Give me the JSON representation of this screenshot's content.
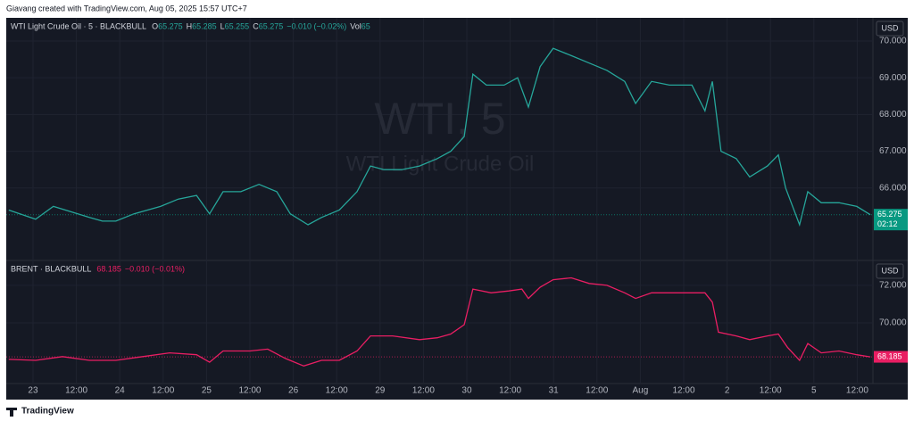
{
  "header": "Giavang created with TradingView.com, Aug 05, 2025 15:57 UTC+7",
  "footer": "TradingView",
  "chart_data": [
    {
      "type": "line",
      "title": "WTI Light Crude Oil · 5 · BLACKBULL",
      "watermark": "WTI, 5",
      "watermark_subtitle": "WTI Light Crude Oil",
      "ohlc": [
        {
          "label": "O",
          "value": 65.275
        },
        {
          "label": "H",
          "value": 65.285
        },
        {
          "label": "L",
          "value": 65.255
        },
        {
          "label": "C",
          "value": 65.275
        }
      ],
      "change": "−0.010 (−0.02%)",
      "volume": {
        "label": "Vol",
        "value": 65
      },
      "currency": "USD",
      "last_price": 65.275,
      "countdown": "02:12",
      "color": "#26a69a",
      "tag_color": "#089981",
      "xlim": [
        -0.617,
        19.362
      ],
      "ylim": [
        64.03,
        70.63
      ],
      "yticks": [
        {
          "value": 66,
          "label": "66.000"
        },
        {
          "value": 67,
          "label": "67.000"
        },
        {
          "value": 68,
          "label": "68.000"
        },
        {
          "value": 69,
          "label": "69.000"
        },
        {
          "value": 70,
          "label": "70.000"
        }
      ],
      "x": [
        -0.56,
        0.06,
        0.47,
        1.3,
        1.6,
        1.91,
        2.33,
        2.94,
        3.35,
        3.77,
        4.07,
        4.38,
        4.79,
        5.21,
        5.62,
        5.93,
        6.34,
        6.65,
        7.06,
        7.47,
        7.78,
        8.09,
        8.5,
        8.91,
        9.32,
        9.63,
        9.94,
        10.14,
        10.45,
        10.86,
        11.17,
        11.42,
        11.69,
        11.99,
        12.41,
        12.82,
        13.23,
        13.64,
        13.89,
        14.26,
        14.67,
        15.19,
        15.49,
        15.66,
        15.86,
        16.21,
        16.52,
        16.93,
        17.18,
        17.35,
        17.67,
        17.86,
        18.17,
        18.58,
        18.99,
        19.3
      ],
      "values": [
        65.4,
        65.15,
        65.5,
        65.2,
        65.1,
        65.1,
        65.3,
        65.5,
        65.7,
        65.8,
        65.3,
        65.9,
        65.9,
        66.1,
        65.9,
        65.3,
        65.0,
        65.2,
        65.4,
        65.9,
        66.6,
        66.5,
        66.5,
        66.6,
        66.8,
        67.0,
        67.4,
        69.1,
        68.8,
        68.8,
        69.0,
        68.2,
        69.3,
        69.8,
        69.6,
        69.4,
        69.2,
        68.9,
        68.3,
        68.9,
        68.8,
        68.8,
        68.1,
        68.9,
        67.0,
        66.8,
        66.3,
        66.6,
        66.9,
        66.0,
        65.0,
        65.9,
        65.6,
        65.6,
        65.5,
        65.275
      ]
    },
    {
      "type": "line",
      "title": "BRENT · BLACKBULL",
      "last_price": 68.185,
      "change": "−0.010 (−0.01%)",
      "currency": "USD",
      "color": "#e91e63",
      "tag_color": "#e91e63",
      "xlim": [
        -0.617,
        19.362
      ],
      "ylim": [
        66.76,
        73.33
      ],
      "yticks": [
        {
          "value": 70,
          "label": "70.000"
        },
        {
          "value": 72,
          "label": "72.000"
        }
      ],
      "xticks": [
        {
          "value": 0,
          "label": "23"
        },
        {
          "value": 1,
          "label": "12:00"
        },
        {
          "value": 2,
          "label": "24"
        },
        {
          "value": 3,
          "label": "12:00"
        },
        {
          "value": 4,
          "label": "25"
        },
        {
          "value": 5,
          "label": "12:00"
        },
        {
          "value": 6,
          "label": "26"
        },
        {
          "value": 7,
          "label": "12:00"
        },
        {
          "value": 8,
          "label": "29"
        },
        {
          "value": 9,
          "label": "12:00"
        },
        {
          "value": 10,
          "label": "30"
        },
        {
          "value": 11,
          "label": "12:00"
        },
        {
          "value": 12,
          "label": "31"
        },
        {
          "value": 13,
          "label": "12:00"
        },
        {
          "value": 14,
          "label": "Aug"
        },
        {
          "value": 15,
          "label": "12:00"
        },
        {
          "value": 16,
          "label": "2"
        },
        {
          "value": 17,
          "label": "12:00"
        },
        {
          "value": 18,
          "label": "5"
        },
        {
          "value": 19,
          "label": "12:00"
        }
      ],
      "x": [
        -0.56,
        0.06,
        0.68,
        1.3,
        1.91,
        2.53,
        3.15,
        3.77,
        4.07,
        4.38,
        5.0,
        5.41,
        5.82,
        6.24,
        6.65,
        7.06,
        7.47,
        7.78,
        8.29,
        8.91,
        9.32,
        9.63,
        9.94,
        10.14,
        10.56,
        10.97,
        11.27,
        11.42,
        11.69,
        11.99,
        12.41,
        12.82,
        13.23,
        13.64,
        13.89,
        14.26,
        14.88,
        15.49,
        15.66,
        15.8,
        16.21,
        16.52,
        16.93,
        17.18,
        17.39,
        17.67,
        17.86,
        18.17,
        18.58,
        18.99,
        19.3
      ],
      "values": [
        68.05,
        68.0,
        68.2,
        68.0,
        68.0,
        68.2,
        68.4,
        68.3,
        67.9,
        68.5,
        68.5,
        68.6,
        68.1,
        67.7,
        68.0,
        68.0,
        68.5,
        69.3,
        69.3,
        69.1,
        69.2,
        69.4,
        69.9,
        71.8,
        71.6,
        71.7,
        71.8,
        71.3,
        71.9,
        72.3,
        72.4,
        72.1,
        72.0,
        71.6,
        71.3,
        71.6,
        71.6,
        71.6,
        71.1,
        69.5,
        69.3,
        69.1,
        69.3,
        69.4,
        68.7,
        68.0,
        68.9,
        68.4,
        68.5,
        68.3,
        68.185
      ]
    }
  ]
}
